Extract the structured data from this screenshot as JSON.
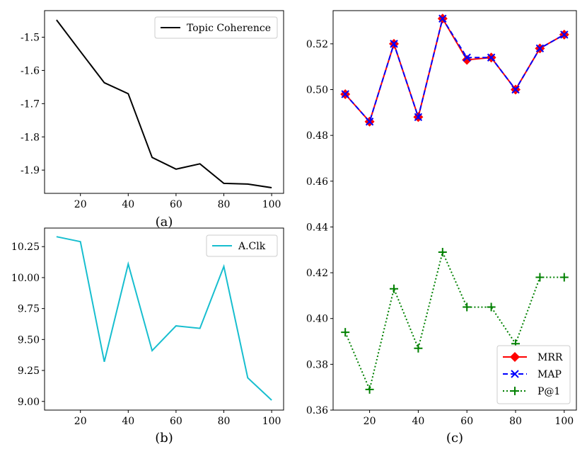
{
  "chart_data": [
    {
      "id": "a",
      "type": "line",
      "caption": "(a)",
      "x": [
        10,
        20,
        30,
        40,
        50,
        60,
        70,
        80,
        90,
        100
      ],
      "xticks": [
        "20",
        "40",
        "60",
        "80",
        "100"
      ],
      "yticks": [
        "-1.5",
        "-1.6",
        "-1.7",
        "-1.8",
        "-1.9"
      ],
      "ylim": [
        -1.97,
        -1.42
      ],
      "xlim": [
        5,
        105
      ],
      "series": [
        {
          "name": "Topic Coherence",
          "color": "#000000",
          "values": [
            -1.448,
            -1.543,
            -1.637,
            -1.67,
            -1.862,
            -1.897,
            -1.881,
            -1.94,
            -1.942,
            -1.953
          ]
        }
      ],
      "legend": "top-right"
    },
    {
      "id": "b",
      "type": "line",
      "caption": "(b)",
      "x": [
        10,
        20,
        30,
        40,
        50,
        60,
        70,
        80,
        90,
        100
      ],
      "xticks": [
        "20",
        "40",
        "60",
        "80",
        "100"
      ],
      "yticks": [
        "10.25",
        "10.00",
        "9.75",
        "9.50",
        "9.25",
        "9.00"
      ],
      "ylim": [
        8.93,
        10.4
      ],
      "xlim": [
        5,
        105
      ],
      "series": [
        {
          "name": "A.Clk",
          "color": "#17becf",
          "values": [
            10.33,
            10.29,
            9.32,
            10.11,
            9.41,
            9.61,
            9.59,
            10.09,
            9.19,
            9.01
          ]
        }
      ],
      "legend": "top-right"
    },
    {
      "id": "c",
      "type": "line",
      "caption": "(c)",
      "x": [
        10,
        20,
        30,
        40,
        50,
        60,
        70,
        80,
        90,
        100
      ],
      "xticks": [
        "20",
        "40",
        "60",
        "80",
        "100"
      ],
      "yticks": [
        "0.52",
        "0.50",
        "0.48",
        "0.46",
        "0.44",
        "0.42",
        "0.40",
        "0.38",
        "0.36"
      ],
      "ylim": [
        0.36,
        0.5345
      ],
      "xlim": [
        5,
        105
      ],
      "series": [
        {
          "name": "MRR",
          "color": "#ff0000",
          "values": [
            0.498,
            0.486,
            0.52,
            0.488,
            0.531,
            0.513,
            0.514,
            0.5,
            0.518,
            0.524
          ]
        },
        {
          "name": "MAP",
          "color": "#0000ff",
          "values": [
            0.498,
            0.486,
            0.52,
            0.488,
            0.531,
            0.514,
            0.514,
            0.5,
            0.518,
            0.524
          ]
        },
        {
          "name": "P@1",
          "color": "#008000",
          "values": [
            0.394,
            0.369,
            0.413,
            0.387,
            0.429,
            0.405,
            0.405,
            0.389,
            0.418,
            0.418
          ]
        }
      ],
      "legend": "bottom-right"
    }
  ]
}
